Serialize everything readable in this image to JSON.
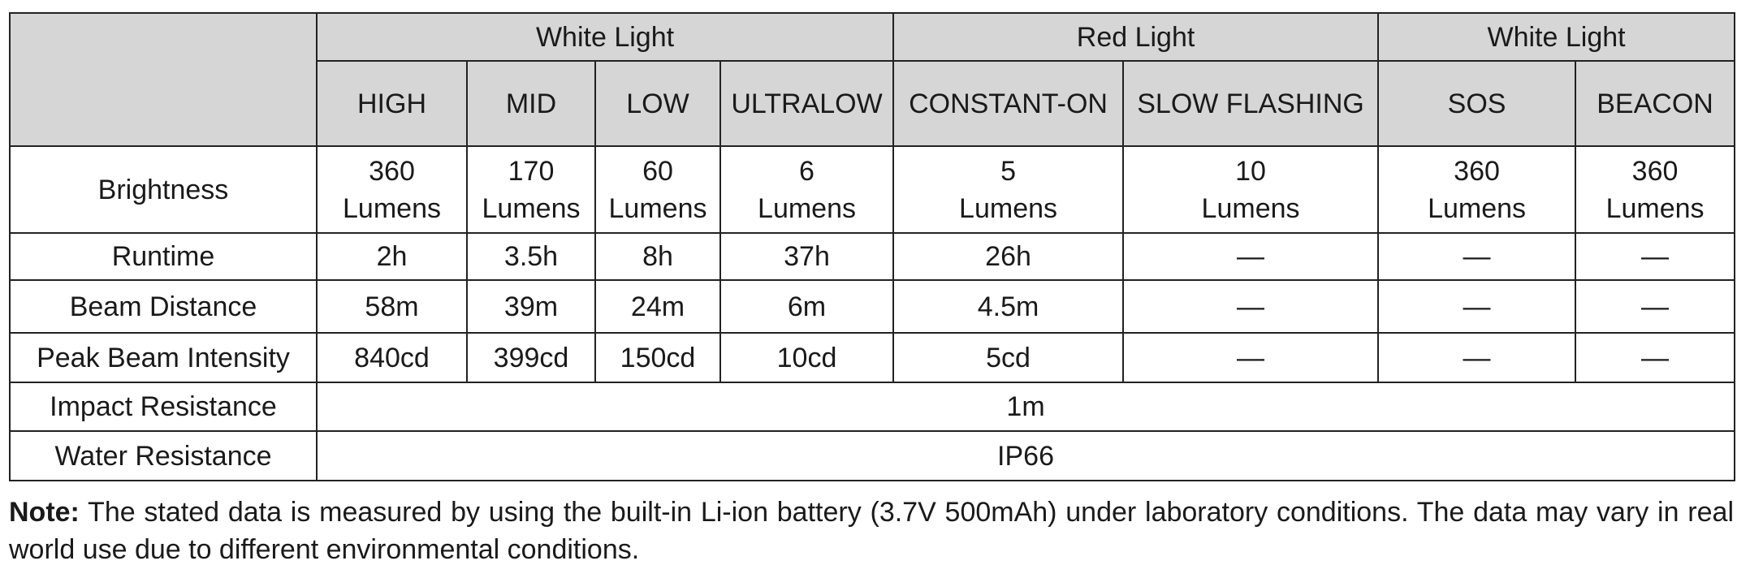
{
  "groups": [
    "White Light",
    "Red Light",
    "White Light"
  ],
  "modes": [
    "HIGH",
    "MID",
    "LOW",
    "ULTRALOW",
    "CONSTANT-ON",
    "SLOW FLASHING",
    "SOS",
    "BEACON"
  ],
  "rows": [
    {
      "label": "Brightness",
      "values": [
        [
          "360",
          "Lumens"
        ],
        [
          "170",
          "Lumens"
        ],
        [
          "60",
          "Lumens"
        ],
        [
          "6",
          "Lumens"
        ],
        [
          "5",
          "Lumens"
        ],
        [
          "10",
          "Lumens"
        ],
        [
          "360",
          "Lumens"
        ],
        [
          "360",
          "Lumens"
        ]
      ]
    },
    {
      "label": "Runtime",
      "values": [
        "2h",
        "3.5h",
        "8h",
        "37h",
        "26h",
        "—",
        "—",
        "—"
      ]
    },
    {
      "label": "Beam Distance",
      "values": [
        "58m",
        "39m",
        "24m",
        "6m",
        "4.5m",
        "—",
        "—",
        "—"
      ]
    },
    {
      "label": "Peak Beam Intensity",
      "values": [
        "840cd",
        "399cd",
        "150cd",
        "10cd",
        "5cd",
        "—",
        "—",
        "—"
      ]
    }
  ],
  "span_rows": [
    {
      "label": "Impact Resistance",
      "value": "1m"
    },
    {
      "label": "Water Resistance",
      "value": "IP66"
    }
  ],
  "note": {
    "label": "Note:",
    "text": " The stated data is measured by using the built-in Li-ion battery (3.7V 500mAh) under laboratory conditions. The data may vary in real world use due to different environmental conditions."
  },
  "colors": {
    "header_bg": "#d6d6d6",
    "border": "#222222"
  }
}
